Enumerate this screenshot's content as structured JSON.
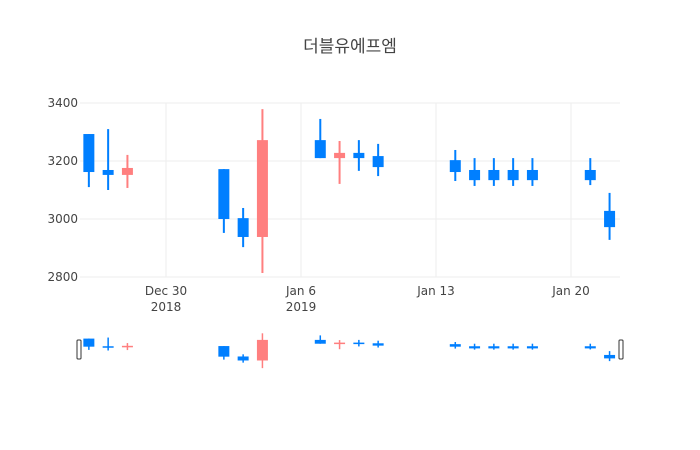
{
  "title": "더블유에프엠",
  "colors": {
    "increasing": "#ff7f7f",
    "decreasing": "#007fff",
    "grid": "#eeeeee",
    "text": "#444444"
  },
  "chart_data": {
    "type": "candlestick",
    "title": "더블유에프엠",
    "xlabel": "",
    "ylabel": "",
    "ylim": [
      2800,
      3400
    ],
    "y_ticks": [
      2800,
      3000,
      3200,
      3400
    ],
    "x_ticks": [
      {
        "label": "Dec 30",
        "sub": "2018",
        "date": "2018-12-30"
      },
      {
        "label": "Jan 6",
        "sub": "2019",
        "date": "2019-01-06"
      },
      {
        "label": "Jan 13",
        "sub": "",
        "date": "2019-01-13"
      },
      {
        "label": "Jan 20",
        "sub": "",
        "date": "2019-01-20"
      }
    ],
    "grid": true,
    "rangeslider": true,
    "series": [
      {
        "date": "2018-12-26",
        "open": 3293,
        "high": 3293,
        "low": 3110,
        "close": 3162
      },
      {
        "date": "2018-12-27",
        "open": 3169,
        "high": 3310,
        "low": 3100,
        "close": 3152
      },
      {
        "date": "2018-12-28",
        "open": 3152,
        "high": 3221,
        "low": 3107,
        "close": 3176
      },
      {
        "date": "2019-01-02",
        "open": 3172,
        "high": 3172,
        "low": 2952,
        "close": 3000
      },
      {
        "date": "2019-01-03",
        "open": 3003,
        "high": 3038,
        "low": 2903,
        "close": 2938
      },
      {
        "date": "2019-01-04",
        "open": 2938,
        "high": 3379,
        "low": 2814,
        "close": 3272
      },
      {
        "date": "2019-01-07",
        "open": 3272,
        "high": 3345,
        "low": 3210,
        "close": 3210
      },
      {
        "date": "2019-01-08",
        "open": 3210,
        "high": 3269,
        "low": 3121,
        "close": 3228
      },
      {
        "date": "2019-01-09",
        "open": 3228,
        "high": 3272,
        "low": 3166,
        "close": 3210
      },
      {
        "date": "2019-01-10",
        "open": 3217,
        "high": 3259,
        "low": 3148,
        "close": 3179
      },
      {
        "date": "2019-01-14",
        "open": 3203,
        "high": 3238,
        "low": 3131,
        "close": 3162
      },
      {
        "date": "2019-01-15",
        "open": 3169,
        "high": 3210,
        "low": 3114,
        "close": 3134
      },
      {
        "date": "2019-01-16",
        "open": 3169,
        "high": 3210,
        "low": 3114,
        "close": 3134
      },
      {
        "date": "2019-01-17",
        "open": 3169,
        "high": 3210,
        "low": 3114,
        "close": 3134
      },
      {
        "date": "2019-01-18",
        "open": 3169,
        "high": 3210,
        "low": 3114,
        "close": 3134
      },
      {
        "date": "2019-01-21",
        "open": 3169,
        "high": 3210,
        "low": 3117,
        "close": 3134
      },
      {
        "date": "2019-01-22",
        "open": 3028,
        "high": 3090,
        "low": 2928,
        "close": 2972
      }
    ]
  }
}
